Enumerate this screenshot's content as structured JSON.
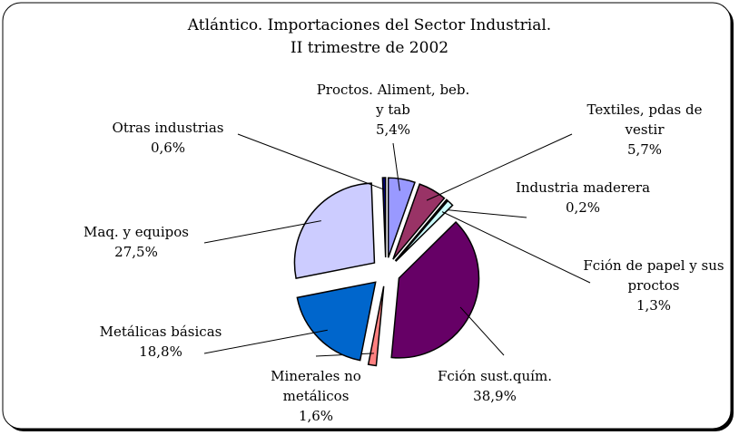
{
  "chart_data": {
    "type": "pie",
    "title": "Atlántico. Importaciones del Sector Industrial.",
    "subtitle": "II trimestre de 2002",
    "categories": [
      "Proctos. Aliment, beb. y tab",
      "Textiles, pdas de vestir",
      "Industria maderera",
      "Fción de papel y sus proctos",
      "Fción sust.quím.",
      "Minerales no metálicos",
      "Metálicas básicas",
      "Maq. y equipos",
      "Otras industrias"
    ],
    "values": [
      5.4,
      5.7,
      0.2,
      1.3,
      38.9,
      1.6,
      18.8,
      27.5,
      0.6
    ],
    "value_labels": [
      "5,4%",
      "5,7%",
      "0,2%",
      "1,3%",
      "38,9%",
      "1,6%",
      "18,8%",
      "27,5%",
      "0,6%"
    ],
    "colors": [
      "#9999ff",
      "#993366",
      "#ffffcc",
      "#ccffff",
      "#660066",
      "#ff8080",
      "#0066cc",
      "#ccccff",
      "#000080"
    ]
  }
}
